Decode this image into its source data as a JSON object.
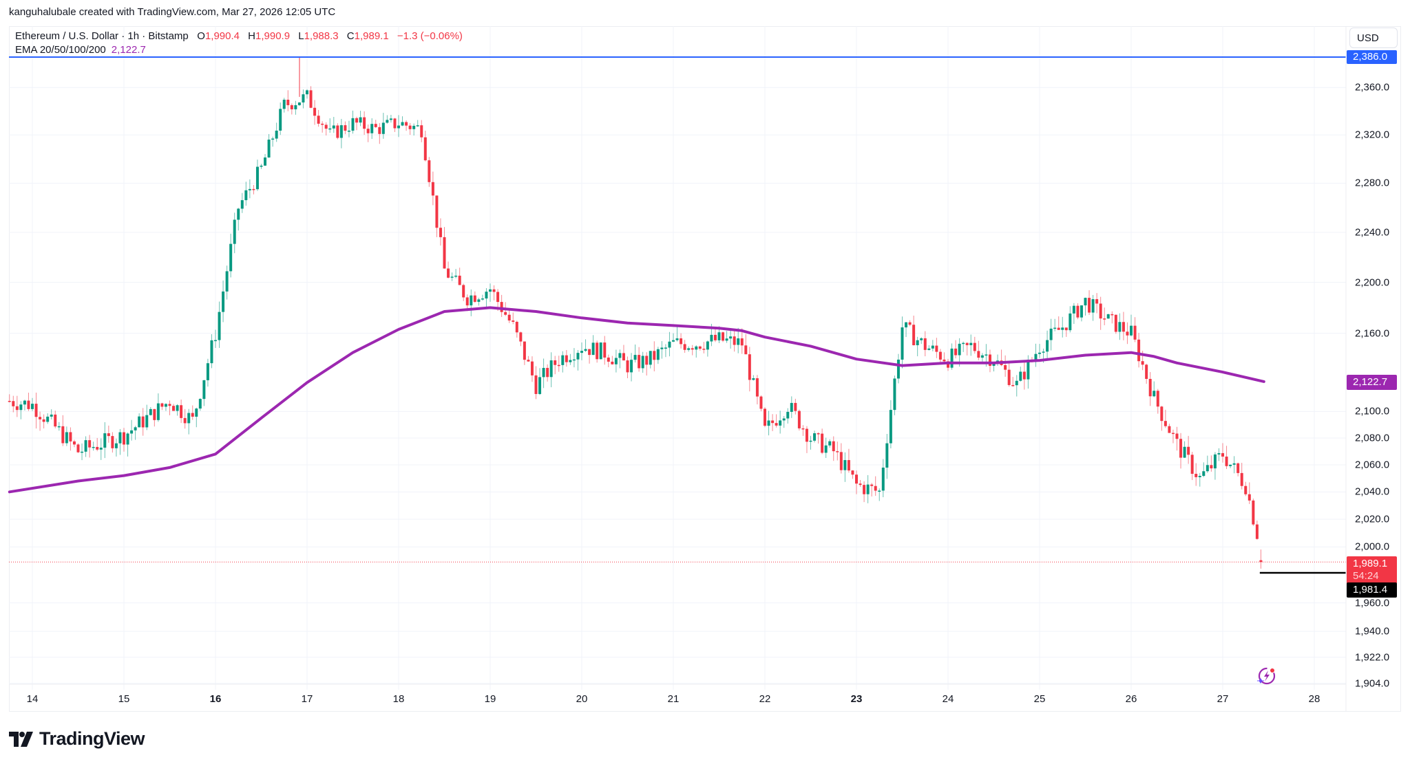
{
  "attribution": "kanguhalubale created with TradingView.com, Mar 27, 2026 12:05 UTC",
  "legend": {
    "symbol": "Ethereum / U.S. Dollar · 1h · Bitstamp",
    "open_label": "O",
    "open": "1,990.4",
    "high_label": "H",
    "high": "1,990.9",
    "low_label": "L",
    "low": "1,988.3",
    "close_label": "C",
    "close": "1,989.1",
    "change": "−1.3 (−0.06%)",
    "ema_label": "EMA 20/50/100/200",
    "ema_value": "2,122.7"
  },
  "currency": "USD",
  "colors": {
    "up": "#089981",
    "down": "#f23645",
    "ema": "#9c27b0",
    "high_line": "#2962ff",
    "grid": "#f0f3fa",
    "text": "#131722"
  },
  "price_tags": {
    "high_line": "2,386.0",
    "ema": "2,122.7",
    "last_price": "1,989.1",
    "countdown": "54:24",
    "low_marker": "1,981.4"
  },
  "logo": {
    "text": "TradingView"
  },
  "chart_data": {
    "type": "candlestick",
    "title": "Ethereum / U.S. Dollar · 1h · Bitstamp",
    "xlabel": "",
    "ylabel": "USD",
    "y_scale": "log",
    "ylim": [
      1895,
      2395
    ],
    "grid": true,
    "x_ticks": [
      {
        "label": "14",
        "bold": false
      },
      {
        "label": "15",
        "bold": false
      },
      {
        "label": "16",
        "bold": true
      },
      {
        "label": "17",
        "bold": false
      },
      {
        "label": "18",
        "bold": false
      },
      {
        "label": "19",
        "bold": false
      },
      {
        "label": "20",
        "bold": false
      },
      {
        "label": "21",
        "bold": false
      },
      {
        "label": "22",
        "bold": false
      },
      {
        "label": "23",
        "bold": true
      },
      {
        "label": "24",
        "bold": false
      },
      {
        "label": "25",
        "bold": false
      },
      {
        "label": "26",
        "bold": false
      },
      {
        "label": "27",
        "bold": false
      },
      {
        "label": "28",
        "bold": false
      }
    ],
    "y_ticks": [
      "2,360.0",
      "2,320.0",
      "2,280.0",
      "2,240.0",
      "2,200.0",
      "2,160.0",
      "2,100.0",
      "2,080.0",
      "2,060.0",
      "2,040.0",
      "2,020.0",
      "2,000.0",
      "1,960.0",
      "1,940.0",
      "1,922.0",
      "1,904.0"
    ],
    "y_tick_values": [
      2360,
      2320,
      2280,
      2240,
      2200,
      2160,
      2100,
      2080,
      2060,
      2040,
      2020,
      2000,
      1960,
      1940,
      1922,
      1904
    ],
    "horizontal_lines": [
      {
        "name": "high",
        "value": 2386.0,
        "color": "#2962ff"
      },
      {
        "name": "low",
        "value": 1981.4,
        "color": "#000000",
        "from_day": 27.45
      }
    ],
    "start_day": 13.75,
    "candle_interval_hours": 1,
    "series": [
      {
        "name": "ETHUSD 1h (daily-anchored closes, approx.)",
        "points": [
          [
            13.75,
            2108
          ],
          [
            14.0,
            2105
          ],
          [
            14.25,
            2088
          ],
          [
            14.5,
            2070
          ],
          [
            14.75,
            2076
          ],
          [
            15.0,
            2082
          ],
          [
            15.25,
            2095
          ],
          [
            15.5,
            2108
          ],
          [
            15.75,
            2093
          ],
          [
            16.0,
            2160
          ],
          [
            16.25,
            2260
          ],
          [
            16.5,
            2292
          ],
          [
            16.75,
            2345
          ],
          [
            17.0,
            2352
          ],
          [
            17.25,
            2320
          ],
          [
            17.5,
            2330
          ],
          [
            17.75,
            2325
          ],
          [
            18.0,
            2330
          ],
          [
            18.25,
            2325
          ],
          [
            18.5,
            2210
          ],
          [
            18.75,
            2188
          ],
          [
            19.0,
            2195
          ],
          [
            19.25,
            2165
          ],
          [
            19.5,
            2120
          ],
          [
            19.75,
            2140
          ],
          [
            20.0,
            2150
          ],
          [
            20.25,
            2145
          ],
          [
            20.5,
            2135
          ],
          [
            20.75,
            2140
          ],
          [
            21.0,
            2152
          ],
          [
            21.25,
            2152
          ],
          [
            21.5,
            2155
          ],
          [
            21.75,
            2152
          ],
          [
            22.0,
            2085
          ],
          [
            22.25,
            2105
          ],
          [
            22.5,
            2080
          ],
          [
            22.75,
            2070
          ],
          [
            23.0,
            2045
          ],
          [
            23.25,
            2040
          ],
          [
            23.5,
            2165
          ],
          [
            23.75,
            2150
          ],
          [
            24.0,
            2140
          ],
          [
            24.25,
            2150
          ],
          [
            24.5,
            2140
          ],
          [
            24.75,
            2120
          ],
          [
            25.0,
            2150
          ],
          [
            25.25,
            2165
          ],
          [
            25.5,
            2185
          ],
          [
            25.75,
            2170
          ],
          [
            26.0,
            2160
          ],
          [
            26.25,
            2110
          ],
          [
            26.5,
            2075
          ],
          [
            26.75,
            2050
          ],
          [
            27.0,
            2068
          ],
          [
            27.25,
            2045
          ],
          [
            27.45,
            1989.1
          ]
        ]
      },
      {
        "name": "EMA 200",
        "points": [
          [
            13.75,
            2040
          ],
          [
            14.5,
            2048
          ],
          [
            15.0,
            2052
          ],
          [
            15.5,
            2058
          ],
          [
            16.0,
            2068
          ],
          [
            16.5,
            2095
          ],
          [
            17.0,
            2122
          ],
          [
            17.5,
            2145
          ],
          [
            18.0,
            2163
          ],
          [
            18.5,
            2177
          ],
          [
            19.0,
            2180
          ],
          [
            19.5,
            2177
          ],
          [
            20.0,
            2172
          ],
          [
            20.5,
            2168
          ],
          [
            21.0,
            2166
          ],
          [
            21.5,
            2164
          ],
          [
            21.75,
            2162
          ],
          [
            22.0,
            2157
          ],
          [
            22.5,
            2150
          ],
          [
            23.0,
            2140
          ],
          [
            23.5,
            2135
          ],
          [
            24.0,
            2137
          ],
          [
            24.5,
            2137
          ],
          [
            25.0,
            2139
          ],
          [
            25.5,
            2143
          ],
          [
            26.0,
            2145
          ],
          [
            26.25,
            2142
          ],
          [
            26.5,
            2137
          ],
          [
            27.0,
            2130
          ],
          [
            27.45,
            2122.7
          ]
        ]
      }
    ]
  }
}
